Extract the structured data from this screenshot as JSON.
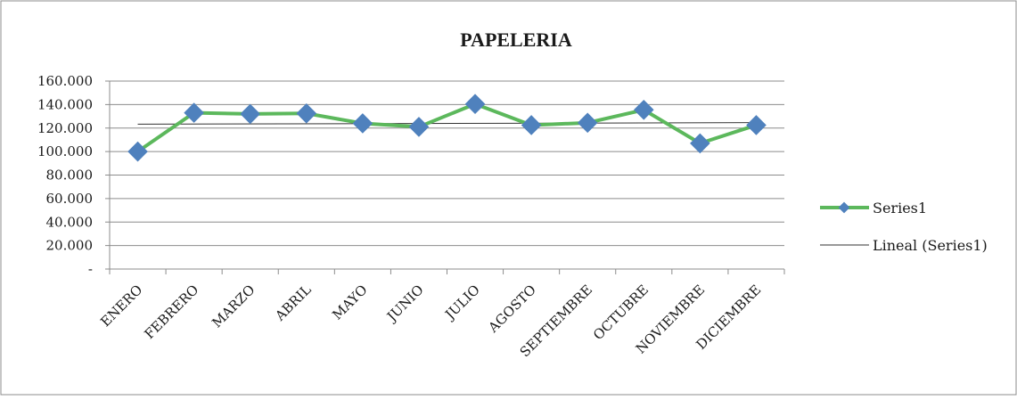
{
  "chart_data": {
    "type": "line",
    "title": "PAPELERIA",
    "xlabel": "",
    "ylabel": "",
    "categories": [
      "ENERO",
      "FEBRERO",
      "MARZO",
      "ABRIL",
      "MAYO",
      "JUNIO",
      "JULIO",
      "AGOSTO",
      "SEPTIEMBRE",
      "OCTUBRE",
      "NOVIEMBRE",
      "DICIEMBRE"
    ],
    "series": [
      {
        "name": "Series1",
        "color": "#5cb85c",
        "marker_color": "#4f81bd",
        "values": [
          100000,
          133000,
          132000,
          132500,
          124000,
          121000,
          140500,
          122500,
          124500,
          135500,
          107000,
          122500
        ]
      }
    ],
    "trendline": {
      "name": "Lineal (Series1)",
      "color": "#333333",
      "start": 123300,
      "end": 124600
    },
    "ylim": [
      0,
      160000
    ],
    "yticks": [
      {
        "value": 0,
        "label": "-"
      },
      {
        "value": 20000,
        "label": "20.000"
      },
      {
        "value": 40000,
        "label": "40.000"
      },
      {
        "value": 60000,
        "label": "60.000"
      },
      {
        "value": 80000,
        "label": "80.000"
      },
      {
        "value": 100000,
        "label": "100.000"
      },
      {
        "value": 120000,
        "label": "120.000"
      },
      {
        "value": 140000,
        "label": "140.000"
      },
      {
        "value": 160000,
        "label": "160.000"
      }
    ],
    "grid": true,
    "legend_position": "right"
  }
}
